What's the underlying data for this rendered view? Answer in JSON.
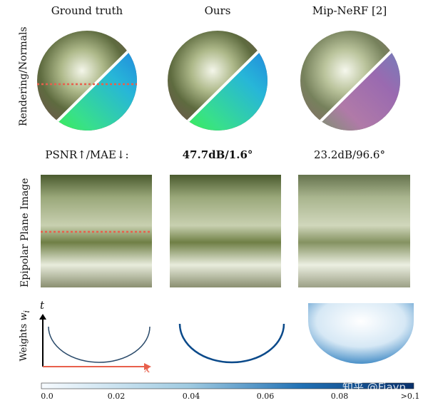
{
  "columns": [
    {
      "title": "Ground truth"
    },
    {
      "title": "Ours"
    },
    {
      "title": "Mip-NeRF [2]"
    }
  ],
  "row_labels": {
    "rendering": "Rendering/Normals",
    "epi": "Epipolar Plane Image",
    "weights": "Weights w_i"
  },
  "metrics": {
    "label": "PSNR↑/MAE↓:",
    "ours": "47.7dB/1.6°",
    "mipnerf": "23.2dB/96.6°"
  },
  "axes": {
    "t": "t",
    "x": "x"
  },
  "colorbar": {
    "colormap": "white-to-blue",
    "ticks": [
      "0.0",
      "0.02",
      "0.04",
      "0.06",
      "0.08",
      ">0.1"
    ]
  },
  "colors": {
    "dashed_line": "#e8604c",
    "x_axis": "#e8604c",
    "t_axis": "#000000",
    "cmap_low": "#f7fbff",
    "cmap_high": "#08306b"
  },
  "watermark": "知乎 @Fiayn"
}
